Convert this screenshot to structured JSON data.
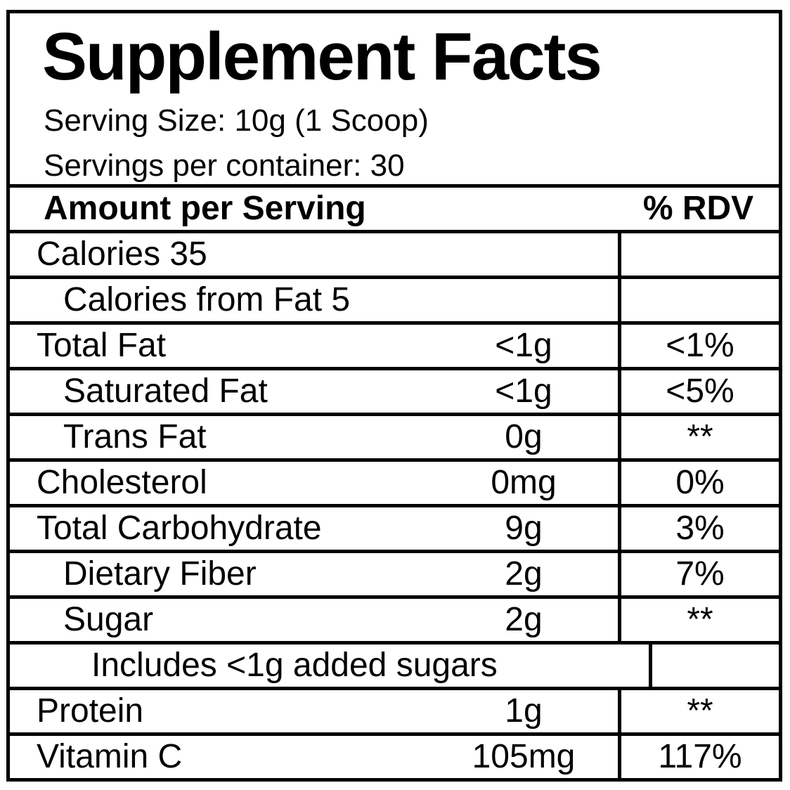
{
  "label": {
    "title": "Supplement Facts",
    "serving_size": "Serving Size: 10g (1 Scoop)",
    "servings_per_container": "Servings per container: 30",
    "header": {
      "amount_col": "Amount per Serving",
      "rdv_col": "% RDV"
    },
    "rows": [
      {
        "name": "Calories 35",
        "amount": "",
        "rdv": "",
        "indent": 0
      },
      {
        "name": "Calories from Fat 5",
        "amount": "",
        "rdv": "",
        "indent": 1
      },
      {
        "name": "Total Fat",
        "amount": "<1g",
        "rdv": "<1%",
        "indent": 0
      },
      {
        "name": "Saturated Fat",
        "amount": "<1g",
        "rdv": "<5%",
        "indent": 1
      },
      {
        "name": "Trans Fat",
        "amount": "0g",
        "rdv": "**",
        "indent": 1
      },
      {
        "name": "Cholesterol",
        "amount": "0mg",
        "rdv": "0%",
        "indent": 0
      },
      {
        "name": "Total Carbohydrate",
        "amount": "9g",
        "rdv": "3%",
        "indent": 0
      },
      {
        "name": "Dietary Fiber",
        "amount": "2g",
        "rdv": "7%",
        "indent": 1
      },
      {
        "name": "Sugar",
        "amount": "2g",
        "rdv": "**",
        "indent": 1
      },
      {
        "name": "Includes <1g added sugars",
        "amount": "",
        "rdv": "",
        "indent": 2
      },
      {
        "name": "Protein",
        "amount": "1g",
        "rdv": "**",
        "indent": 0
      },
      {
        "name": "Vitamin C",
        "amount": "105mg",
        "rdv": "117%",
        "indent": 0
      }
    ],
    "colors": {
      "border": "#000000",
      "background": "#ffffff",
      "text": "#000000"
    }
  }
}
